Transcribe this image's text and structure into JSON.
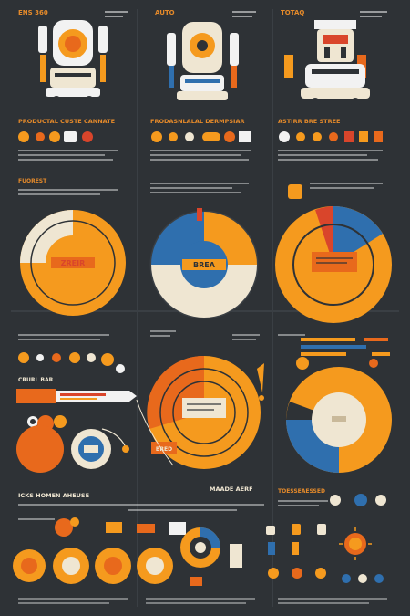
{
  "colors": {
    "background": "#2e3236",
    "orange": "#f59a1e",
    "dark_orange": "#e8691c",
    "red": "#d9452b",
    "blue": "#2f6fae",
    "cream": "#efe6d2",
    "white": "#f2f2f2",
    "text_orange": "#e58a2a"
  },
  "labels": {
    "top_left": "ENS 360",
    "top_mid": "AUTO",
    "top_right": "TOTAQ",
    "section_1": "PRODUCTAL CUSTE CANNATE",
    "section_2": "FRODASNLALAL DERMPSIAR",
    "section_3": "ASTIRR BRE STREE",
    "left_side": "FUOREST",
    "pie_1": "ZREIR",
    "pie_2": "BREA",
    "banner": "CRURL BAR",
    "gauge": "BRED",
    "bottom_title": "ICKS HOMEN AHEUSE",
    "bottom_mid": "MAADE AERF",
    "bottom_right": "TOESSEAESSED"
  },
  "icons": [
    "robot-icon",
    "sun-icon",
    "lightbulb-icon",
    "gear-icon"
  ]
}
